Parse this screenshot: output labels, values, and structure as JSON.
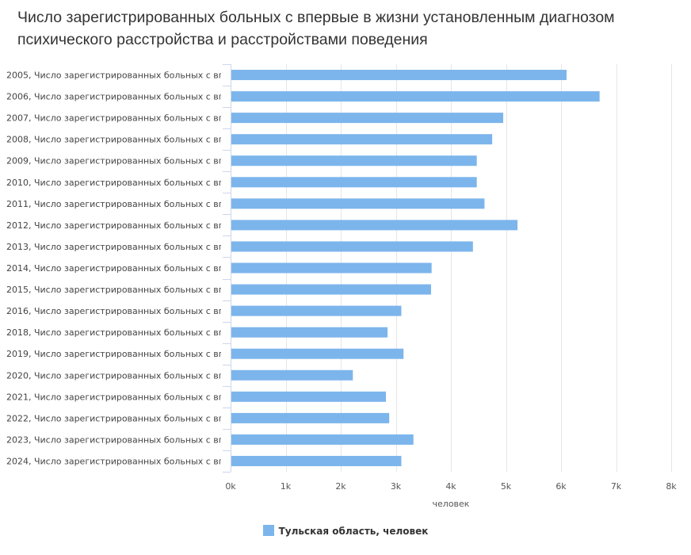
{
  "chart_data": {
    "type": "bar",
    "orientation": "horizontal",
    "title": "Число зарегистрированных больных с впервые в жизни установленным диагнозом психического расстройства и расстройствами поведения",
    "categories": [
      "2005, Число зарегистрированных больных с вп",
      "2006, Число зарегистрированных больных с вп",
      "2007, Число зарегистрированных больных с вп",
      "2008, Число зарегистрированных больных с вп",
      "2009, Число зарегистрированных больных с вп",
      "2010, Число зарегистрированных больных с вп",
      "2011, Число зарегистрированных больных с вп",
      "2012, Число зарегистрированных больных с вп",
      "2013, Число зарегистрированных больных с вп",
      "2014, Число зарегистрированных больных с вп",
      "2015, Число зарегистрированных больных с вп",
      "2016, Число зарегистрированных больных с вп",
      "2018, Число зарегистрированных больных с вп",
      "2019, Число зарегистрированных больных с вп",
      "2020, Число зарегистрированных больных с вп",
      "2021, Число зарегистрированных больных с вп",
      "2022, Число зарегистрированных больных с вп",
      "2023, Число зарегистрированных больных с вп",
      "2024, Число зарегистрированных больных с вп"
    ],
    "series": [
      {
        "name": "Тульская область, человек",
        "color": "#7cb5ec",
        "values": [
          6100,
          6700,
          4950,
          4750,
          4470,
          4470,
          4610,
          5210,
          4400,
          3650,
          3640,
          3100,
          2850,
          3140,
          2220,
          2820,
          2880,
          3320,
          3100
        ]
      }
    ],
    "xlabel": "человек",
    "ylabel": "",
    "xlim": [
      0,
      8000
    ],
    "ticks": [
      {
        "value": 0,
        "label": "0k"
      },
      {
        "value": 1000,
        "label": "1k"
      },
      {
        "value": 2000,
        "label": "2k"
      },
      {
        "value": 3000,
        "label": "3k"
      },
      {
        "value": 4000,
        "label": "4k"
      },
      {
        "value": 5000,
        "label": "5k"
      },
      {
        "value": 6000,
        "label": "6k"
      },
      {
        "value": 7000,
        "label": "7k"
      },
      {
        "value": 8000,
        "label": "8k"
      }
    ],
    "grid": true,
    "legend_position": "bottom-center",
    "grid_color": "#e6e6e6",
    "axis_color": "#ccd6eb"
  }
}
